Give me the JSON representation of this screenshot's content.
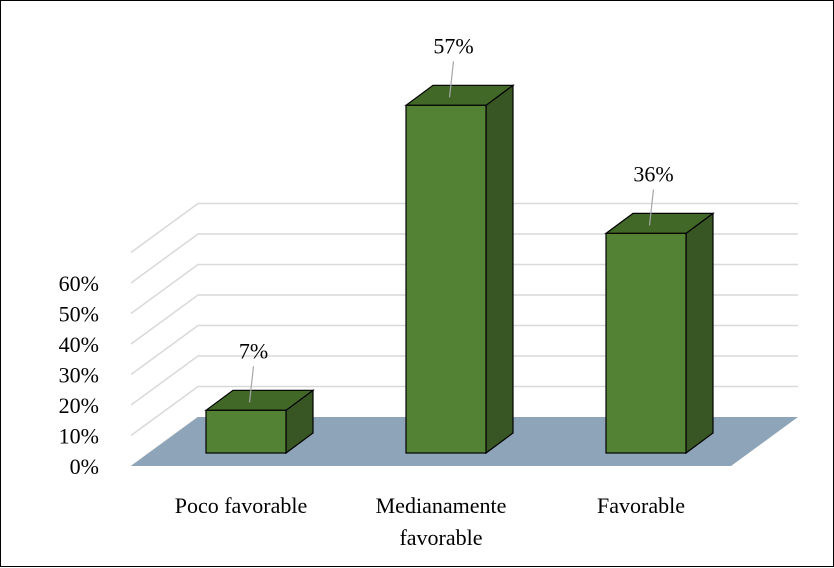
{
  "chart_data": {
    "type": "bar",
    "title": "",
    "xlabel": "",
    "ylabel": "",
    "categories": [
      [
        "Poco favorable"
      ],
      [
        "Medianamente",
        "favorable"
      ],
      [
        "Favorable"
      ]
    ],
    "values": [
      7,
      57,
      36
    ],
    "data_labels": [
      "7%",
      "57%",
      "36%"
    ],
    "y_ticks": [
      0,
      10,
      20,
      30,
      40,
      50,
      60
    ],
    "y_tick_labels": [
      "0%",
      "10%",
      "20%",
      "30%",
      "40%",
      "50%",
      "60%"
    ],
    "ylim": [
      0,
      60
    ],
    "grid": true,
    "legend": "none",
    "style": "3d-column",
    "colors": {
      "bar_front": "#548235",
      "bar_top": "#416827",
      "bar_side": "#375623",
      "bar_outline": "#000000",
      "floor": "#8EA4B8",
      "gridline": "#D9D9D9",
      "leader_line": "#A6A6A6"
    }
  }
}
